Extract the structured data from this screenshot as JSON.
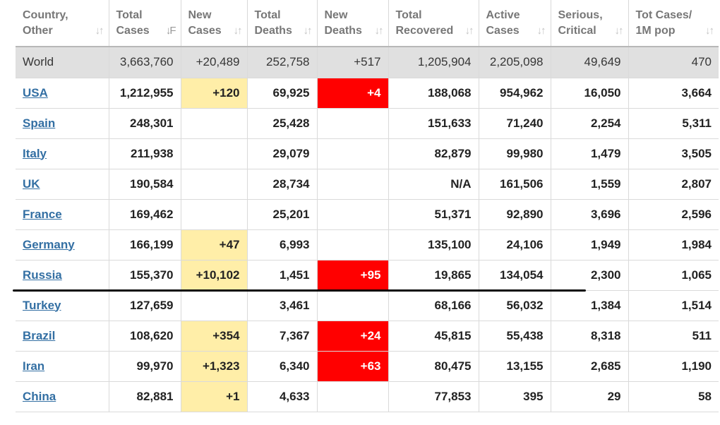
{
  "colors": {
    "link": "#336fa3",
    "world_row_bg": "#e0e0e0",
    "new_cases_highlight": "#ffeea8",
    "new_deaths_highlight": "#ff0000"
  },
  "header": {
    "country": [
      "Country,",
      "Other"
    ],
    "total_cases": [
      "Total",
      "Cases"
    ],
    "new_cases": [
      "New",
      "Cases"
    ],
    "total_deaths": [
      "Total",
      "Deaths"
    ],
    "new_deaths": [
      "New",
      "Deaths"
    ],
    "total_recovered": [
      "Total",
      "Recovered"
    ],
    "active_cases": [
      "Active",
      "Cases"
    ],
    "serious_critical": [
      "Serious,",
      "Critical"
    ],
    "tot_cases_1m": [
      "Tot Cases/",
      "1M pop"
    ]
  },
  "sort_icon": "sort-arrows-icon",
  "world": {
    "name": "World",
    "total_cases": "3,663,760",
    "new_cases": "+20,489",
    "total_deaths": "252,758",
    "new_deaths": "+517",
    "total_recovered": "1,205,904",
    "active_cases": "2,205,098",
    "serious_critical": "49,649",
    "tot_cases_1m": "470"
  },
  "rows": [
    {
      "name": "USA",
      "total_cases": "1,212,955",
      "new_cases": "+120",
      "total_deaths": "69,925",
      "new_deaths": "+4",
      "total_recovered": "188,068",
      "active_cases": "954,962",
      "serious_critical": "16,050",
      "tot_cases_1m": "3,664"
    },
    {
      "name": "Spain",
      "total_cases": "248,301",
      "new_cases": "",
      "total_deaths": "25,428",
      "new_deaths": "",
      "total_recovered": "151,633",
      "active_cases": "71,240",
      "serious_critical": "2,254",
      "tot_cases_1m": "5,311"
    },
    {
      "name": "Italy",
      "total_cases": "211,938",
      "new_cases": "",
      "total_deaths": "29,079",
      "new_deaths": "",
      "total_recovered": "82,879",
      "active_cases": "99,980",
      "serious_critical": "1,479",
      "tot_cases_1m": "3,505"
    },
    {
      "name": "UK",
      "total_cases": "190,584",
      "new_cases": "",
      "total_deaths": "28,734",
      "new_deaths": "",
      "total_recovered": "N/A",
      "active_cases": "161,506",
      "serious_critical": "1,559",
      "tot_cases_1m": "2,807"
    },
    {
      "name": "France",
      "total_cases": "169,462",
      "new_cases": "",
      "total_deaths": "25,201",
      "new_deaths": "",
      "total_recovered": "51,371",
      "active_cases": "92,890",
      "serious_critical": "3,696",
      "tot_cases_1m": "2,596"
    },
    {
      "name": "Germany",
      "total_cases": "166,199",
      "new_cases": "+47",
      "total_deaths": "6,993",
      "new_deaths": "",
      "total_recovered": "135,100",
      "active_cases": "24,106",
      "serious_critical": "1,949",
      "tot_cases_1m": "1,984"
    },
    {
      "name": "Russia",
      "total_cases": "155,370",
      "new_cases": "+10,102",
      "total_deaths": "1,451",
      "new_deaths": "+95",
      "total_recovered": "19,865",
      "active_cases": "134,054",
      "serious_critical": "2,300",
      "tot_cases_1m": "1,065"
    },
    {
      "name": "Turkey",
      "total_cases": "127,659",
      "new_cases": "",
      "total_deaths": "3,461",
      "new_deaths": "",
      "total_recovered": "68,166",
      "active_cases": "56,032",
      "serious_critical": "1,384",
      "tot_cases_1m": "1,514"
    },
    {
      "name": "Brazil",
      "total_cases": "108,620",
      "new_cases": "+354",
      "total_deaths": "7,367",
      "new_deaths": "+24",
      "total_recovered": "45,815",
      "active_cases": "55,438",
      "serious_critical": "8,318",
      "tot_cases_1m": "511"
    },
    {
      "name": "Iran",
      "total_cases": "99,970",
      "new_cases": "+1,323",
      "total_deaths": "6,340",
      "new_deaths": "+63",
      "total_recovered": "80,475",
      "active_cases": "13,155",
      "serious_critical": "2,685",
      "tot_cases_1m": "1,190"
    },
    {
      "name": "China",
      "total_cases": "82,881",
      "new_cases": "+1",
      "total_deaths": "4,633",
      "new_deaths": "",
      "total_recovered": "77,853",
      "active_cases": "395",
      "serious_critical": "29",
      "tot_cases_1m": "58"
    }
  ]
}
